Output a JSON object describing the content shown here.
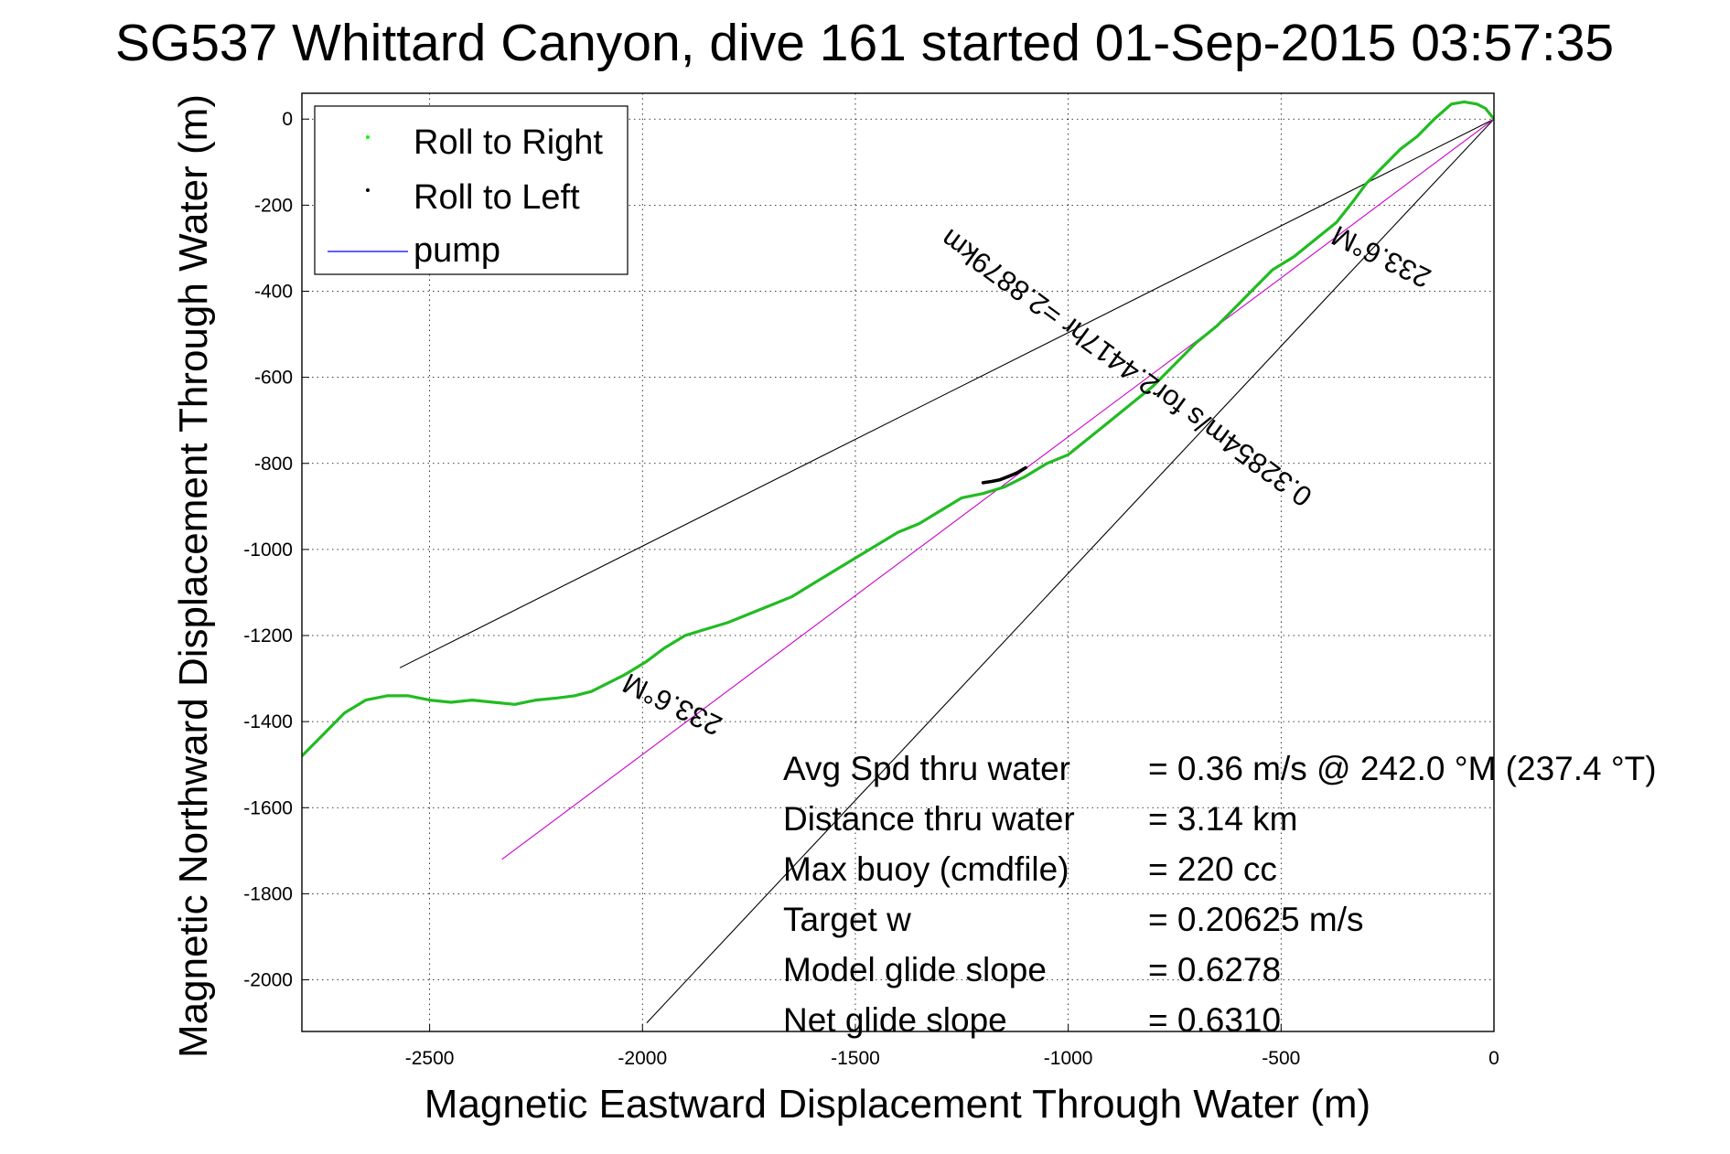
{
  "chart_data": {
    "type": "line",
    "title": "SG537 Whittard Canyon, dive 161 started 01-Sep-2015 03:57:35",
    "xlabel": "Magnetic Eastward Displacement Through Water (m)",
    "ylabel": "Magnetic Northward Displacement Through Water (m)",
    "xlim": [
      -2800,
      0
    ],
    "ylim": [
      -2120,
      60
    ],
    "grid": true,
    "x_ticks": [
      -2500,
      -2000,
      -1500,
      -1000,
      -500,
      0
    ],
    "x_tick_labels": [
      "-2500",
      "-2000",
      "-1500",
      "-1000",
      "-500",
      "0"
    ],
    "y_ticks": [
      0,
      -200,
      -400,
      -600,
      -800,
      -1000,
      -1200,
      -1400,
      -1600,
      -1800,
      -2000
    ],
    "y_tick_labels": [
      "0",
      "-200",
      "-400",
      "-600",
      "-800",
      "-1000",
      "-1200",
      "-1400",
      "-1600",
      "-1800",
      "-2000"
    ],
    "legend": {
      "placement": "top-left",
      "entries": [
        {
          "label": "Roll to Right",
          "color": "#00ff00",
          "marker": "dot"
        },
        {
          "label": "Roll to Left",
          "color": "#000000",
          "marker": "dot"
        },
        {
          "label": "pump",
          "color": "#0000ff",
          "marker": "line"
        }
      ]
    },
    "series": [
      {
        "name": "Roll to Right",
        "color": "#22bb22",
        "x": [
          0,
          -20,
          -40,
          -70,
          -100,
          -140,
          -180,
          -220,
          -260,
          -300,
          -330,
          -370,
          -420,
          -470,
          -520,
          -560,
          -600,
          -650,
          -700,
          -730,
          -760,
          -800,
          -850,
          -900,
          -950,
          -1000,
          -1050,
          -1100,
          -1150,
          -1200,
          -1250,
          -1300,
          -1350,
          -1400,
          -1450,
          -1500,
          -1550,
          -1600,
          -1650,
          -1700,
          -1750,
          -1800,
          -1850,
          -1900,
          -1950,
          -1990,
          -2040,
          -2080,
          -2120,
          -2160,
          -2200,
          -2250,
          -2300,
          -2350,
          -2400,
          -2450,
          -2500,
          -2550,
          -2600,
          -2650,
          -2700,
          -2750,
          -2800
        ],
        "y": [
          0,
          25,
          35,
          40,
          35,
          0,
          -40,
          -70,
          -110,
          -150,
          -190,
          -240,
          -280,
          -320,
          -350,
          -390,
          -430,
          -480,
          -520,
          -550,
          -580,
          -620,
          -660,
          -700,
          -740,
          -780,
          -800,
          -830,
          -855,
          -870,
          -880,
          -910,
          -940,
          -960,
          -990,
          -1020,
          -1050,
          -1080,
          -1110,
          -1130,
          -1150,
          -1170,
          -1185,
          -1200,
          -1230,
          -1260,
          -1290,
          -1310,
          -1330,
          -1340,
          -1345,
          -1350,
          -1360,
          -1355,
          -1350,
          -1355,
          -1350,
          -1340,
          -1340,
          -1350,
          -1380,
          -1430,
          -1480
        ]
      },
      {
        "name": "Roll to Left",
        "color": "#000000",
        "x": [
          -1200,
          -1180,
          -1160,
          -1140,
          -1120,
          -1100
        ],
        "y": [
          -845,
          -842,
          -838,
          -830,
          -822,
          -810
        ]
      }
    ],
    "reference_lines": [
      {
        "color": "#000000",
        "x": [
          0,
          -2570
        ],
        "y": [
          0,
          -1275
        ]
      },
      {
        "color": "#000000",
        "x": [
          0,
          -1990
        ],
        "y": [
          0,
          -2100
        ]
      },
      {
        "color": "#cc00cc",
        "x": [
          0,
          -2330
        ],
        "y": [
          0,
          -1720
        ]
      }
    ],
    "annotations": [
      {
        "text": "233.6°M",
        "x": -255,
        "y": -300,
        "rotate": 206
      },
      {
        "text": "233.6°M",
        "x": -1920,
        "y": -1340,
        "rotate": 206
      },
      {
        "text": "0.32854m/s for2.4417hr =2.8879km",
        "x": -850,
        "y": -560,
        "rotate": 216
      }
    ],
    "stats": [
      {
        "label": "Avg Spd thru water",
        "value": "=  0.36 m/s @ 242.0 °M (237.4 °T)"
      },
      {
        "label": "Distance thru water",
        "value": "=  3.14 km"
      },
      {
        "label": "Max buoy (cmdfile)",
        "value": "= 220 cc"
      },
      {
        "label": "Target w",
        "value": "= 0.20625 m/s"
      },
      {
        "label": "Model glide slope",
        "value": "= 0.6278"
      },
      {
        "label": "Net glide slope",
        "value": "= 0.6310"
      }
    ]
  }
}
